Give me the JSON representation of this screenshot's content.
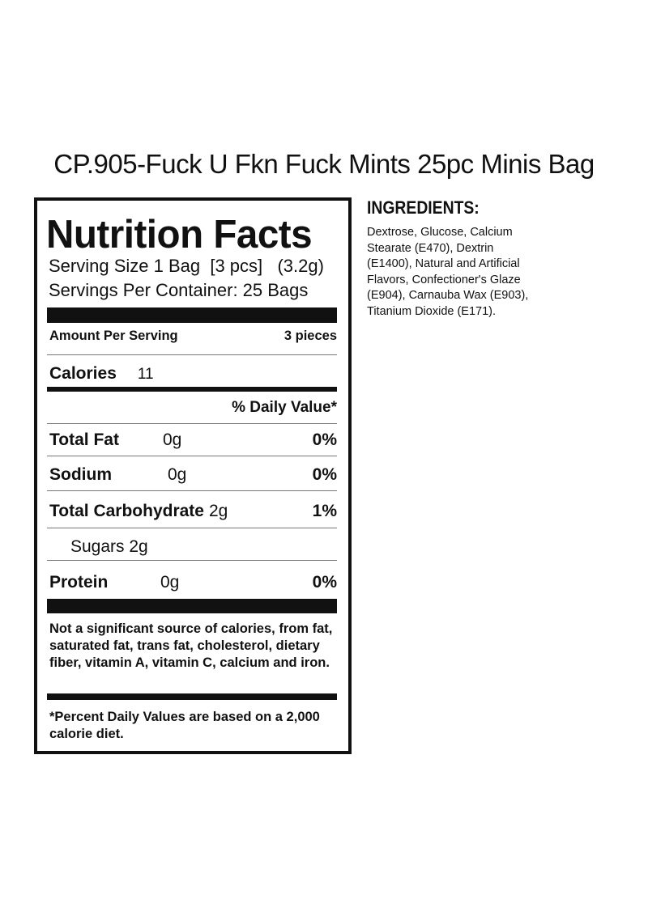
{
  "title": "CP.905-Fuck U Fkn Fuck Mints 25pc Minis Bag",
  "label": {
    "heading": "Nutrition Facts",
    "serving_size": "Serving Size 1 Bag  [3 pcs]   (3.2g)",
    "servings_per_container": "Servings Per Container: 25 Bags",
    "amount_per_serving": "Amount Per Serving",
    "amount_value": "3 pieces",
    "calories_label": "Calories",
    "calories_value": "11",
    "daily_value_header": "% Daily Value*",
    "nutrients": [
      {
        "name": "Total Fat",
        "amount": "0g",
        "dv": "0%"
      },
      {
        "name": "Sodium",
        "amount": "0g",
        "dv": "0%"
      },
      {
        "name": "Total Carbohydrate",
        "amount": "2g",
        "dv": "1%"
      },
      {
        "name": "Sugars 2g",
        "amount": "",
        "dv": ""
      },
      {
        "name": "Protein",
        "amount": "0g",
        "dv": "0%"
      }
    ],
    "footnote": "Not a significant source of calories, from fat, saturated fat, trans fat, cholesterol, dietary fiber, vitamin A, vitamin C, calcium and iron.",
    "daily_values_note": "*Percent Daily Values are based on a 2,000 calorie diet."
  },
  "ingredients": {
    "heading": "INGREDIENTS:",
    "text": "Dextrose, Glucose, Calcium Stearate (E470), Dextrin (E1400), Natural and Artificial Flavors, Confectioner's Glaze (E904), Carnauba Wax (E903), Titanium Dioxide (E171)."
  }
}
